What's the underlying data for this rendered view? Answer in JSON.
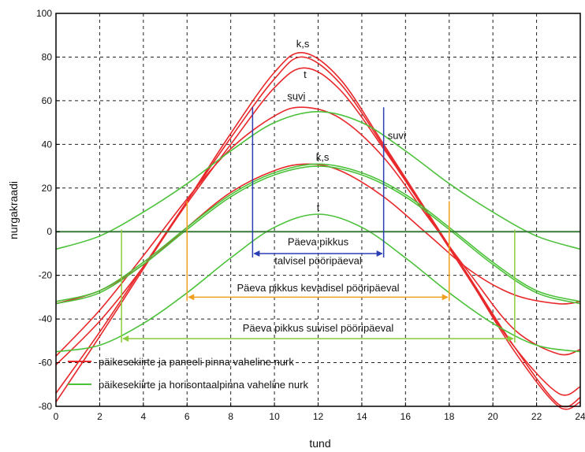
{
  "chart_data": {
    "type": "line",
    "xlabel": "tund",
    "ylabel": "nurgakraadi",
    "xlim": [
      0,
      24
    ],
    "ylim": [
      -80,
      100
    ],
    "xticks": [
      "0",
      "2",
      "4",
      "6",
      "8",
      "10",
      "12",
      "14",
      "16",
      "18",
      "20",
      "22",
      "24"
    ],
    "yticks": [
      "-80",
      "-60",
      "-40",
      "-20",
      "0",
      "20",
      "40",
      "60",
      "80",
      "100"
    ],
    "grid": true,
    "legend_position": "bottom-left",
    "legend": [
      {
        "label": "päikesekiirte ja paneeli pinna vaheline nurk",
        "color": "#e8282a"
      },
      {
        "label": "päikesekiirte ja  horisontaalpinna  vaheline nurk",
        "color": "#4cc23a"
      }
    ],
    "series": [
      {
        "group": "panel",
        "color": "#e8282a",
        "x": [
          0,
          2,
          4,
          6,
          8,
          10,
          11.3,
          13,
          15,
          17,
          19,
          21,
          23,
          24
        ],
        "y": [
          -78,
          -48,
          -17,
          14,
          45,
          73,
          82,
          70,
          40,
          9,
          -22,
          -53,
          -79,
          -76
        ]
      },
      {
        "group": "panel",
        "color": "#e8282a",
        "x": [
          0,
          2,
          4,
          6,
          8,
          10,
          11.3,
          13,
          15,
          17,
          19,
          21,
          23,
          24
        ],
        "y": [
          -74,
          -46,
          -16,
          14,
          43,
          70,
          80,
          68,
          39,
          8,
          -23,
          -55,
          -80,
          -78
        ]
      },
      {
        "group": "panel",
        "color": "#e8282a",
        "x": [
          0,
          2,
          4,
          6,
          8,
          10,
          11.4,
          13,
          15,
          17,
          19,
          21,
          23,
          24
        ],
        "y": [
          -61,
          -41,
          -16,
          13,
          40,
          66,
          75,
          65,
          38,
          8,
          -23,
          -53,
          -74,
          -71
        ]
      },
      {
        "group": "panel",
        "color": "#e8282a",
        "x": [
          0,
          2,
          4,
          6,
          8,
          10,
          11.3,
          13,
          15,
          17,
          19,
          21,
          23,
          24
        ],
        "y": [
          -57,
          -36,
          -11,
          15,
          38,
          53,
          57,
          52,
          34,
          7,
          -20,
          -45,
          -56,
          -54
        ]
      },
      {
        "group": "panel",
        "color": "#e8282a",
        "x": [
          0,
          2,
          4,
          6,
          8,
          10,
          11.5,
          13,
          15,
          17,
          19,
          21,
          23,
          24
        ],
        "y": [
          -33,
          -27,
          -15,
          2,
          18,
          28,
          31,
          28,
          16,
          -1,
          -18,
          -29,
          -33,
          -32
        ]
      },
      {
        "group": "horizontal",
        "color": "#4cc23a",
        "x": [
          0,
          2,
          4,
          6,
          8,
          10,
          12,
          14,
          16,
          18,
          20,
          22,
          24
        ],
        "y": [
          -8,
          -2,
          9,
          22,
          37,
          50,
          55,
          50,
          37,
          22,
          9,
          -2,
          -8
        ]
      },
      {
        "group": "horizontal",
        "color": "#4cc23a",
        "x": [
          0,
          2,
          4,
          6,
          8,
          10,
          12,
          14,
          16,
          18,
          20,
          22,
          24
        ],
        "y": [
          -32,
          -27,
          -14,
          2,
          17,
          27,
          31,
          27,
          17,
          2,
          -14,
          -27,
          -32
        ]
      },
      {
        "group": "horizontal",
        "color": "#4cc23a",
        "x": [
          0,
          2,
          4,
          6,
          8,
          10,
          12,
          14,
          16,
          18,
          20,
          22,
          24
        ],
        "y": [
          -33,
          -28,
          -15,
          1,
          16,
          26,
          30,
          26,
          16,
          1,
          -15,
          -28,
          -33
        ]
      },
      {
        "group": "horizontal",
        "color": "#4cc23a",
        "x": [
          0,
          2,
          4,
          6,
          8,
          10,
          12,
          14,
          16,
          18,
          20,
          22,
          24
        ],
        "y": [
          -55,
          -52,
          -42,
          -28,
          -12,
          2,
          8,
          2,
          -12,
          -28,
          -42,
          -52,
          -55
        ]
      }
    ],
    "annotations": [
      {
        "text": "k,s",
        "x": 11.3,
        "y": 84.5
      },
      {
        "text": "t",
        "x": 11.4,
        "y": 70.5
      },
      {
        "text": "suvi",
        "x": 11.0,
        "y": 60.5
      },
      {
        "text": "suvi",
        "x": 15.6,
        "y": 42.5
      },
      {
        "text": "k,s",
        "x": 12.2,
        "y": 32.5
      },
      {
        "text": "t",
        "x": 12.0,
        "y": 9.5
      }
    ],
    "day_length_markers": [
      {
        "label_lines": [
          "Päeva pikkus",
          "talvisel pööripäeval"
        ],
        "color": "#2b3fb5",
        "x_start": 9,
        "x_end": 15,
        "y": -10,
        "top": 57,
        "label_y": [
          -4.5,
          -13
        ]
      },
      {
        "label_lines": [
          "Päeva pikkus kevadisel pööripäeval"
        ],
        "color": "#f0a020",
        "x_start": 6,
        "x_end": 18,
        "y": -30,
        "top": 14,
        "label_y": [
          -25.5
        ]
      },
      {
        "label_lines": [
          "Päeva pikkus suvisel pööripäeval"
        ],
        "color": "#8ccc3c",
        "x_start": 3,
        "x_end": 21,
        "y": -49,
        "top": 1,
        "label_y": [
          -44
        ]
      }
    ],
    "reference_line": {
      "y": 0,
      "color": "#3a7a3a"
    }
  }
}
